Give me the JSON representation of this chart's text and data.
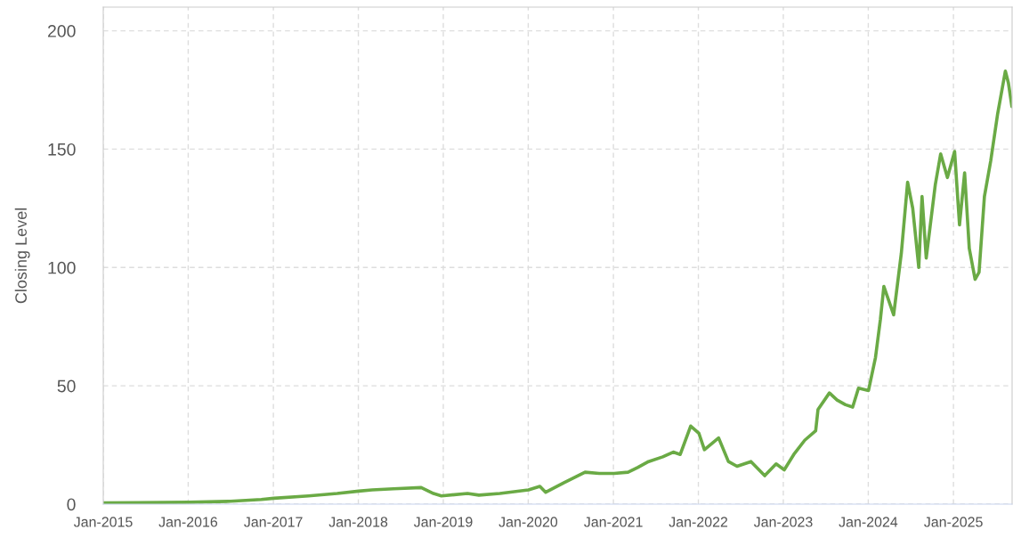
{
  "chart_data": {
    "type": "line",
    "ylabel": "Closing Level",
    "x": [
      "2015-01-02",
      "2015-06-01",
      "2016-01-04",
      "2016-07-01",
      "2016-11-10",
      "2017-01-03",
      "2017-06-01",
      "2017-10-02",
      "2018-01-02",
      "2018-03-01",
      "2018-06-01",
      "2018-09-28",
      "2018-11-20",
      "2018-12-24",
      "2019-04-15",
      "2019-06-03",
      "2019-09-01",
      "2020-01-02",
      "2020-02-20",
      "2020-03-16",
      "2020-06-01",
      "2020-09-01",
      "2020-11-01",
      "2021-01-04",
      "2021-03-05",
      "2021-04-15",
      "2021-06-01",
      "2021-08-01",
      "2021-09-15",
      "2021-10-15",
      "2021-11-29",
      "2022-01-03",
      "2022-01-27",
      "2022-03-29",
      "2022-05-10",
      "2022-06-16",
      "2022-08-15",
      "2022-10-13",
      "2022-12-01",
      "2023-01-05",
      "2023-02-15",
      "2023-04-03",
      "2023-05-20",
      "2023-05-30",
      "2023-07-18",
      "2023-08-20",
      "2023-09-25",
      "2023-10-26",
      "2023-11-20",
      "2024-01-02",
      "2024-02-01",
      "2024-02-22",
      "2024-03-08",
      "2024-04-19",
      "2024-05-22",
      "2024-06-18",
      "2024-07-10",
      "2024-08-05",
      "2024-08-19",
      "2024-09-06",
      "2024-10-15",
      "2024-11-07",
      "2024-12-06",
      "2025-01-06",
      "2025-01-27",
      "2025-02-18",
      "2025-03-10",
      "2025-04-04",
      "2025-04-21",
      "2025-05-14",
      "2025-06-10",
      "2025-07-10",
      "2025-08-12",
      "2025-08-25",
      "2025-09-09"
    ],
    "series": [
      {
        "color": "#6aaa45",
        "values": [
          0.5,
          0.6,
          0.8,
          1.2,
          2.0,
          2.5,
          3.5,
          4.5,
          5.5,
          6.0,
          6.5,
          7.0,
          4.5,
          3.5,
          4.5,
          3.8,
          4.5,
          6.0,
          7.5,
          5.0,
          9.0,
          13.5,
          13.0,
          13.0,
          13.5,
          15.5,
          18.0,
          20.0,
          22.0,
          21.0,
          33.0,
          30.0,
          23.0,
          28.0,
          18.0,
          16.0,
          18.0,
          12.0,
          17.0,
          14.5,
          21.0,
          27.0,
          31.0,
          40.0,
          47.0,
          44.0,
          42.0,
          41.0,
          49.0,
          48.0,
          62.0,
          78.0,
          92.0,
          80.0,
          106.0,
          136.0,
          125.0,
          100.0,
          130.0,
          104.0,
          135.0,
          148.0,
          138.0,
          149.0,
          118.0,
          140.0,
          108.0,
          95.0,
          98.0,
          130.0,
          145.0,
          165.0,
          183.0,
          178.0,
          168.0
        ]
      }
    ],
    "xlim": [
      "2015-01-01",
      "2025-09-10"
    ],
    "xticks": [
      {
        "value": "2015-01-01",
        "label": "Jan-2015"
      },
      {
        "value": "2016-01-01",
        "label": "Jan-2016"
      },
      {
        "value": "2017-01-01",
        "label": "Jan-2017"
      },
      {
        "value": "2018-01-01",
        "label": "Jan-2018"
      },
      {
        "value": "2019-01-01",
        "label": "Jan-2019"
      },
      {
        "value": "2020-01-01",
        "label": "Jan-2020"
      },
      {
        "value": "2021-01-01",
        "label": "Jan-2021"
      },
      {
        "value": "2022-01-01",
        "label": "Jan-2022"
      },
      {
        "value": "2023-01-01",
        "label": "Jan-2023"
      },
      {
        "value": "2024-01-01",
        "label": "Jan-2024"
      },
      {
        "value": "2025-01-01",
        "label": "Jan-2025"
      }
    ],
    "ylim": [
      0,
      210
    ],
    "yticks": [
      0,
      50,
      100,
      150,
      200
    ],
    "grid": true,
    "line_style": "solid",
    "marker": "none"
  }
}
